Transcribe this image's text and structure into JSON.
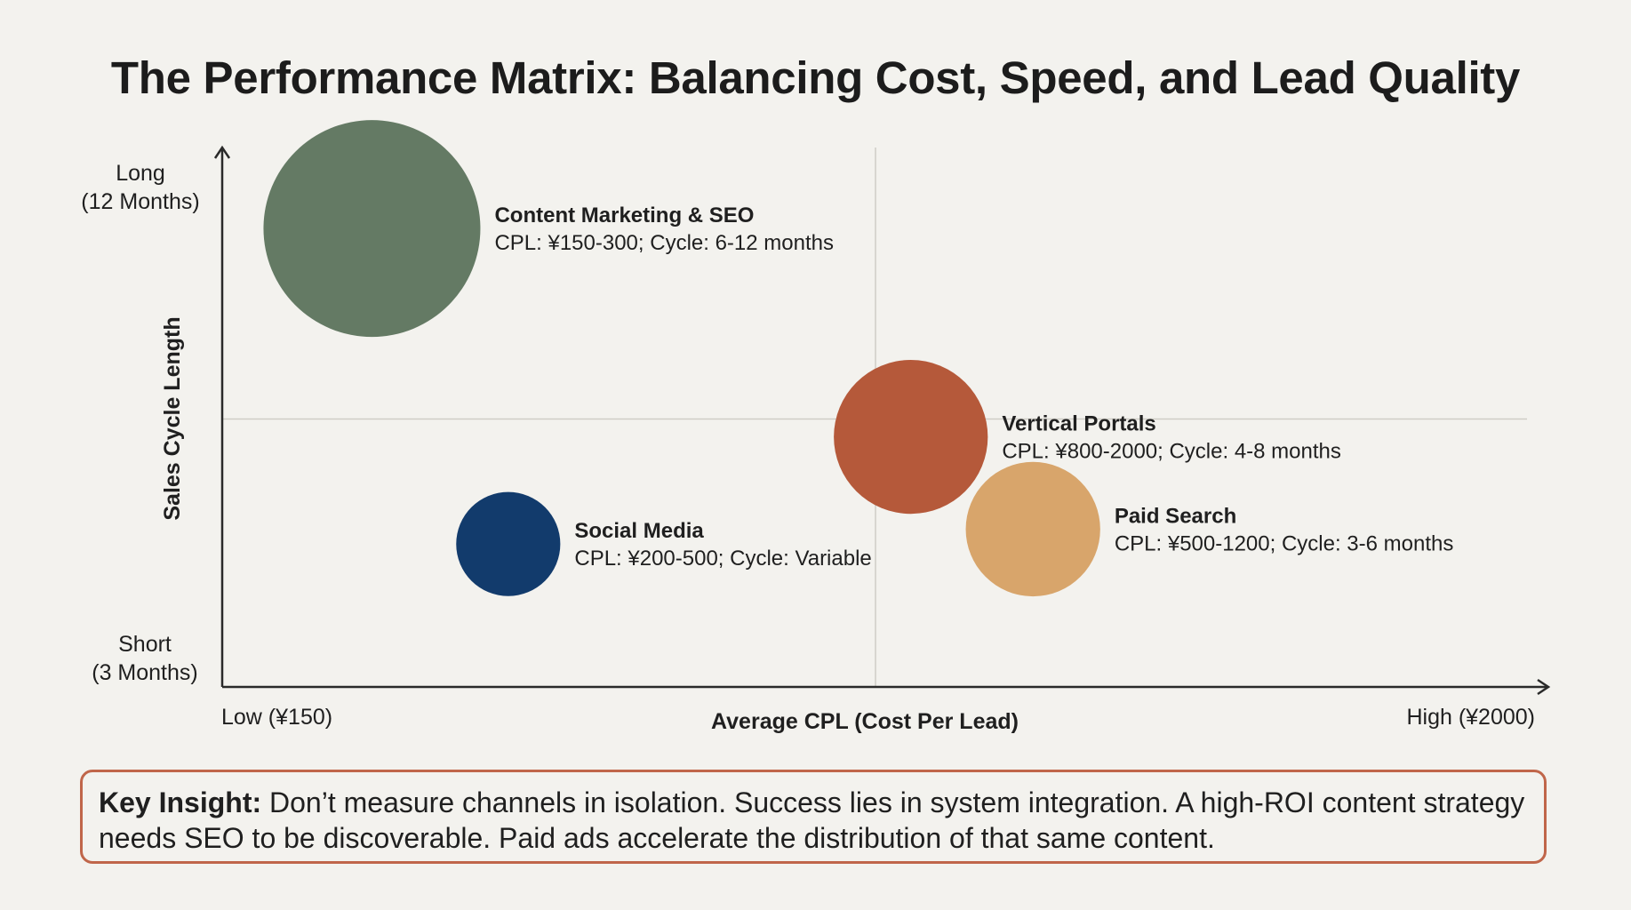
{
  "title": "The Performance Matrix: Balancing Cost, Speed, and Lead Quality",
  "chart_data": {
    "type": "scatter",
    "subtype": "bubble",
    "title": "The Performance Matrix: Balancing Cost, Speed, and Lead Quality",
    "xlabel": "Average CPL (Cost Per Lead)",
    "ylabel": "Sales Cycle Length",
    "x_axis": {
      "min_label": "Low (¥150)",
      "max_label": "High (¥2000)",
      "range": [
        150,
        2000
      ],
      "midline": 1075
    },
    "y_axis": {
      "max_label_line1": "Long",
      "max_label_line2": "(12 Months)",
      "min_label_line1": "Short",
      "min_label_line2": "(3 Months)",
      "range": [
        3,
        12
      ],
      "midline": 7.5
    },
    "grid": false,
    "quadrant_lines": true,
    "series": [
      {
        "name": "Content Marketing & SEO",
        "detail": "CPL: ¥150-300; Cycle: 6-12 months",
        "x": 362,
        "y": 10.7,
        "size": 1.0,
        "color": "#647a64"
      },
      {
        "name": "Vertical Portals",
        "detail": "CPL: ¥800-2000; Cycle: 4-8 months",
        "x": 1125,
        "y": 7.2,
        "size": 0.71,
        "color": "#b5593a"
      },
      {
        "name": "Social Media",
        "detail": "CPL: ¥200-500; Cycle: Variable",
        "x": 555,
        "y": 5.4,
        "size": 0.48,
        "color": "#123b6c"
      },
      {
        "name": "Paid Search",
        "detail": "CPL: ¥500-1200; Cycle: 3-6 months",
        "x": 1298,
        "y": 5.65,
        "size": 0.62,
        "color": "#d8a56b"
      }
    ]
  },
  "insight": {
    "lead": "Key Insight:",
    "text": " Don’t measure channels in isolation. Success lies in system integration. A high-ROI content strategy needs SEO to be discoverable. Paid ads accelerate the distribution of that same content."
  }
}
